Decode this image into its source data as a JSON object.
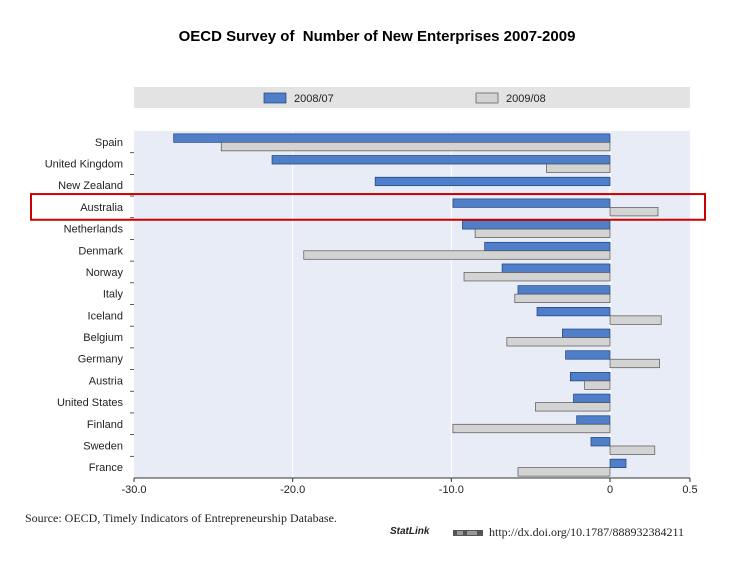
{
  "page": {
    "title": "OECD Survey of  Number of New Enterprises 2007-2009",
    "source": "Source:  OECD, Timely Indicators of Entrepreneurship Database.",
    "statlink_label": "StatLink",
    "statlink_url": "http://dx.doi.org/10.1787/888932384211"
  },
  "chart_data": {
    "type": "bar",
    "orientation": "horizontal",
    "categories": [
      "Spain",
      "United Kingdom",
      "New Zealand",
      "Australia",
      "Netherlands",
      "Denmark",
      "Norway",
      "Italy",
      "Iceland",
      "Belgium",
      "Germany",
      "Austria",
      "United States",
      "Finland",
      "Sweden",
      "France"
    ],
    "series": [
      {
        "name": "2008/07",
        "color": "#4f7fc8",
        "values": [
          -27.5,
          -21.3,
          -14.8,
          -9.9,
          -9.3,
          -7.9,
          -6.8,
          -5.8,
          -4.6,
          -3.0,
          -2.8,
          -2.5,
          -2.3,
          -2.1,
          -1.2,
          1.0
        ]
      },
      {
        "name": "2009/08",
        "color": "#d3d3d3",
        "values": [
          -24.5,
          -4.0,
          null,
          3.0,
          -8.5,
          -19.3,
          -9.2,
          -6.0,
          3.2,
          -6.5,
          3.1,
          -1.6,
          -4.7,
          -9.9,
          2.8,
          -5.8
        ]
      }
    ],
    "xlim": [
      -30,
      5
    ],
    "xticks": [
      "-30.0",
      "-20.0",
      "-10.0",
      "0",
      "0.5"
    ],
    "legend_position": "top",
    "highlighted_category": "Australia",
    "highlight_color": "#cc0000",
    "grid": true
  }
}
